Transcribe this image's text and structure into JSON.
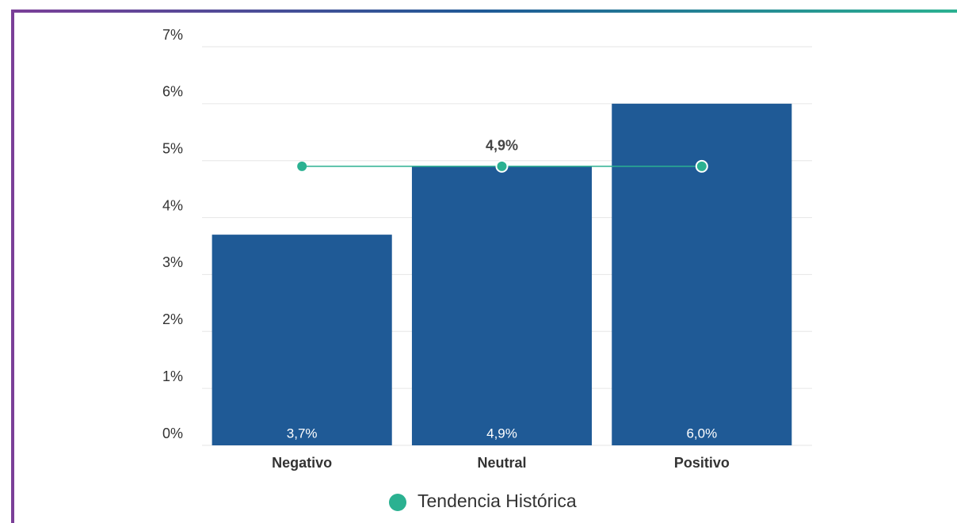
{
  "chart_data": {
    "type": "bar",
    "categories": [
      "Negativo",
      "Neutral",
      "Positivo"
    ],
    "series": [
      {
        "type": "bar",
        "color": "#1f5a96",
        "values": [
          3.7,
          4.9,
          6.0
        ],
        "value_labels": [
          "3,7%",
          "4,9%",
          "6,0%"
        ]
      },
      {
        "name": "Tendencia Histórica",
        "type": "line",
        "color": "#2bb191",
        "values": [
          4.9,
          4.9,
          4.9
        ],
        "value_labels": [
          null,
          "4,9%",
          null
        ]
      }
    ],
    "ylim": [
      0,
      7
    ],
    "yticks": [
      {
        "value": 0,
        "label": "0%"
      },
      {
        "value": 1,
        "label": "1%"
      },
      {
        "value": 2,
        "label": "2%"
      },
      {
        "value": 3,
        "label": "3%"
      },
      {
        "value": 4,
        "label": "4%"
      },
      {
        "value": 5,
        "label": "5%"
      },
      {
        "value": 6,
        "label": "6%"
      },
      {
        "value": 7,
        "label": "7%"
      }
    ],
    "grid": true,
    "legend": "bottom"
  }
}
